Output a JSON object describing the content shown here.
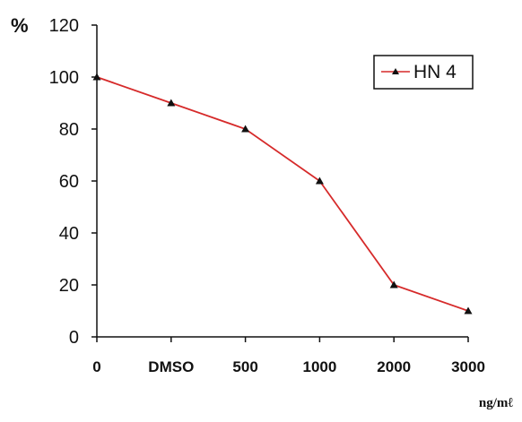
{
  "chart_data": {
    "type": "line",
    "ylabel": "%",
    "xlabel": "ng/mℓ",
    "categories": [
      "0",
      "DMSO",
      "500",
      "1000",
      "2000",
      "3000"
    ],
    "ylim": [
      0,
      120
    ],
    "yticks": [
      0,
      20,
      40,
      60,
      80,
      100,
      120
    ],
    "grid": false,
    "legend": "top-right",
    "series": [
      {
        "name": "HN 4",
        "color": "#d62a2a",
        "marker": "triangle",
        "values": [
          100,
          90,
          80,
          60,
          20,
          10
        ]
      }
    ]
  }
}
